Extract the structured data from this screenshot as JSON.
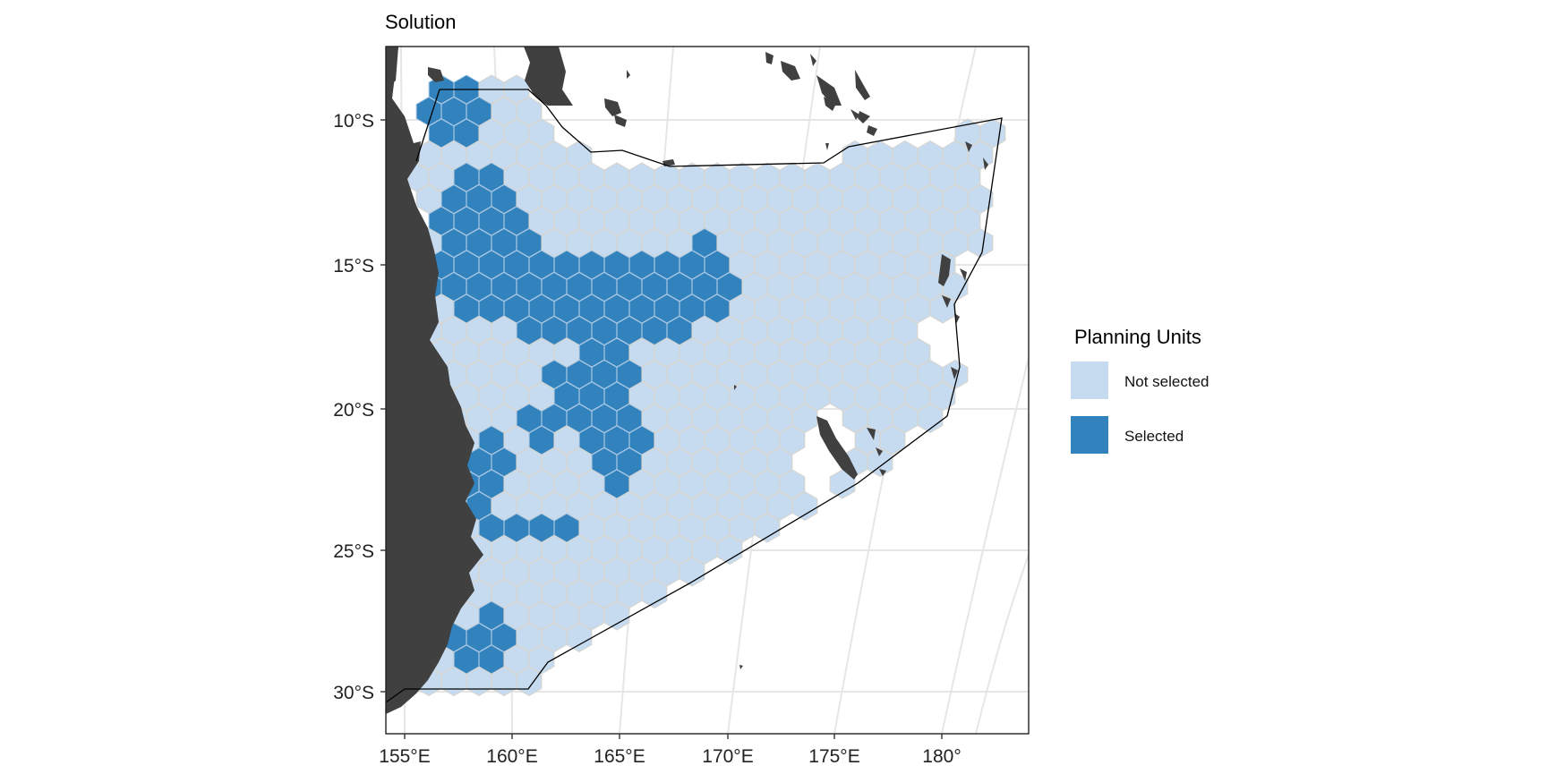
{
  "title": "Solution",
  "map": {
    "y_axis_labels": [
      "10°S",
      "15°S",
      "20°S",
      "25°S",
      "30°S"
    ],
    "x_axis_labels": [
      "155°E",
      "160°E",
      "165°E",
      "170°E",
      "175°E",
      "180°"
    ],
    "colors": {
      "not_selected": "#c6dbef",
      "selected": "#3182bd",
      "land": "#404040",
      "hex_stroke": "#d9d4cc",
      "graticule": "#e6e6e6"
    }
  },
  "legend": {
    "title": "Planning Units",
    "items": [
      {
        "label": "Not selected",
        "color": "#c6dbef"
      },
      {
        "label": "Selected",
        "color": "#3182bd"
      }
    ]
  }
}
